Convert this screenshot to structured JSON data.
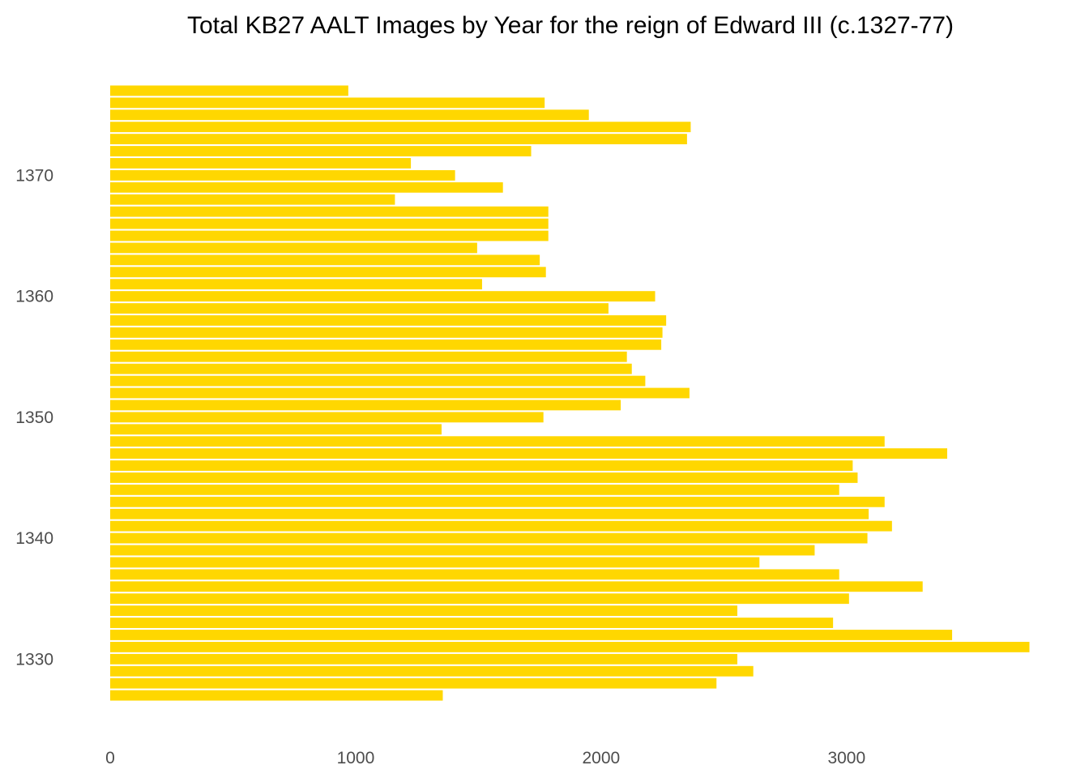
{
  "chart_data": {
    "type": "bar",
    "orientation": "horizontal",
    "title": "Total KB27 AALT Images by Year for the reign of Edward III (c.1327-77)",
    "xlabel": "",
    "ylabel": "",
    "xlim": [
      0,
      3750
    ],
    "ylim": [
      1325.8,
      1378.2
    ],
    "x_ticks": [
      0,
      1000,
      2000,
      3000
    ],
    "y_ticks": [
      1330,
      1340,
      1350,
      1360,
      1370
    ],
    "grid": false,
    "legend": "none",
    "bar_color": "#FFD700",
    "series": [
      {
        "years": [
          1327,
          1328,
          1329,
          1330,
          1331,
          1332,
          1333,
          1334,
          1335,
          1336,
          1337,
          1338,
          1339,
          1340,
          1341,
          1342,
          1343,
          1344,
          1345,
          1346,
          1347,
          1348,
          1349,
          1350,
          1351,
          1352,
          1353,
          1354,
          1355,
          1356,
          1357,
          1358,
          1359,
          1360,
          1361,
          1362,
          1363,
          1364,
          1365,
          1366,
          1367,
          1368,
          1369,
          1370,
          1371,
          1372,
          1373,
          1374,
          1375,
          1376,
          1377
        ],
        "values": [
          1355,
          2470,
          2620,
          2555,
          3745,
          3430,
          2945,
          2555,
          3010,
          3310,
          2970,
          2645,
          2870,
          3085,
          3185,
          3090,
          3155,
          2970,
          3045,
          3025,
          3410,
          3155,
          1350,
          1765,
          2080,
          2360,
          2180,
          2125,
          2105,
          2245,
          2250,
          2265,
          2030,
          2220,
          1515,
          1775,
          1750,
          1495,
          1785,
          1785,
          1785,
          1160,
          1600,
          1405,
          1225,
          1715,
          2350,
          2365,
          1950,
          1770,
          970
        ]
      }
    ]
  }
}
